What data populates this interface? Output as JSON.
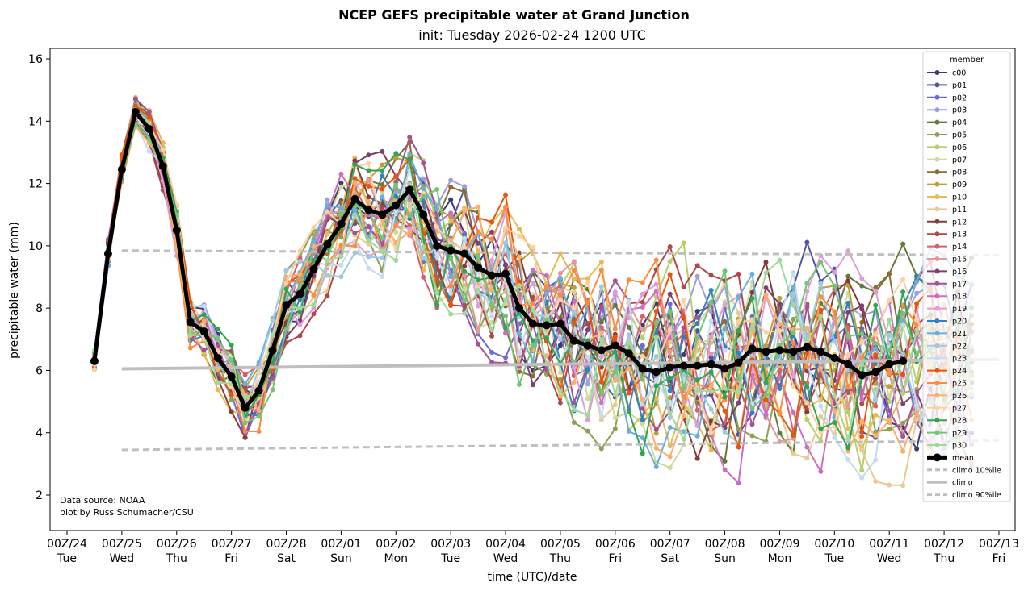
{
  "chart_data": {
    "type": "line",
    "title": "NCEP GEFS precipitable water at Grand Junction",
    "subtitle": "init: Tuesday 2026-02-24 1200 UTC",
    "xlabel": "time (UTC)/date",
    "ylabel": "precipitable water (mm)",
    "ylim": [
      0.9,
      16.4
    ],
    "yticks": [
      "2",
      "4",
      "6",
      "8",
      "10",
      "12",
      "14",
      "16"
    ],
    "xticks": [
      {
        "top": "00Z/24",
        "bottom": "Tue"
      },
      {
        "top": "00Z/25",
        "bottom": "Wed"
      },
      {
        "top": "00Z/26",
        "bottom": "Thu"
      },
      {
        "top": "00Z/27",
        "bottom": "Fri"
      },
      {
        "top": "00Z/28",
        "bottom": "Sat"
      },
      {
        "top": "00Z/01",
        "bottom": "Sun"
      },
      {
        "top": "00Z/02",
        "bottom": "Mon"
      },
      {
        "top": "00Z/03",
        "bottom": "Tue"
      },
      {
        "top": "00Z/04",
        "bottom": "Wed"
      },
      {
        "top": "00Z/05",
        "bottom": "Thu"
      },
      {
        "top": "00Z/06",
        "bottom": "Fri"
      },
      {
        "top": "00Z/07",
        "bottom": "Sat"
      },
      {
        "top": "00Z/08",
        "bottom": "Sun"
      },
      {
        "top": "00Z/09",
        "bottom": "Mon"
      },
      {
        "top": "00Z/10",
        "bottom": "Tue"
      },
      {
        "top": "00Z/11",
        "bottom": "Wed"
      },
      {
        "top": "00Z/12",
        "bottom": "Thu"
      },
      {
        "top": "00Z/13",
        "bottom": "Fri"
      }
    ],
    "x_units": "days since 00Z/24",
    "x_start": 0.5,
    "x_step": 0.25,
    "grid": false,
    "legend_title": "member",
    "legend_position": "top-right",
    "annotation": [
      "Data source: NOAA",
      "plot by Russ Schumacher/CSU"
    ],
    "mean": {
      "name": "mean",
      "color": "#000000",
      "values": [
        6.3,
        9.75,
        12.45,
        14.3,
        13.75,
        12.55,
        10.5,
        7.55,
        7.25,
        6.4,
        5.8,
        4.8,
        5.35,
        6.65,
        8.1,
        8.45,
        9.25,
        10.05,
        10.7,
        11.5,
        11.15,
        11.0,
        11.3,
        11.8,
        11.0,
        10.0,
        9.85,
        9.75,
        9.3,
        9.05,
        9.1,
        8.0,
        7.5,
        7.45,
        7.5,
        6.95,
        6.8,
        6.65,
        6.8,
        6.55,
        6.05,
        5.95,
        6.1,
        6.15,
        6.15,
        6.2,
        6.05,
        6.25,
        6.7,
        6.6,
        6.65,
        6.6,
        6.75,
        6.6,
        6.4,
        6.2,
        5.85,
        5.95,
        6.2,
        6.3
      ]
    },
    "climo": {
      "x_range": [
        1.0,
        17.0
      ],
      "p10": {
        "name": "climo 10%ile",
        "values": [
          3.45,
          3.75
        ]
      },
      "median": {
        "name": "climo",
        "values": [
          6.05,
          6.35
        ]
      },
      "p90": {
        "name": "climo 90%ile",
        "values": [
          9.85,
          9.7
        ]
      },
      "color": "#bfbfbf"
    },
    "members": [
      {
        "name": "c00",
        "color": "#393b79"
      },
      {
        "name": "p01",
        "color": "#5254a3"
      },
      {
        "name": "p02",
        "color": "#6b6ecf"
      },
      {
        "name": "p03",
        "color": "#9c9ede"
      },
      {
        "name": "p04",
        "color": "#637939"
      },
      {
        "name": "p05",
        "color": "#8ca252"
      },
      {
        "name": "p06",
        "color": "#b5cf6b"
      },
      {
        "name": "p07",
        "color": "#cedb9c"
      },
      {
        "name": "p08",
        "color": "#8c6d31"
      },
      {
        "name": "p09",
        "color": "#bd9e39"
      },
      {
        "name": "p10",
        "color": "#e7ba52"
      },
      {
        "name": "p11",
        "color": "#e7cb94"
      },
      {
        "name": "p12",
        "color": "#843c39"
      },
      {
        "name": "p13",
        "color": "#ad494a"
      },
      {
        "name": "p14",
        "color": "#d6616b"
      },
      {
        "name": "p15",
        "color": "#e7969c"
      },
      {
        "name": "p16",
        "color": "#7b4173"
      },
      {
        "name": "p17",
        "color": "#a55194"
      },
      {
        "name": "p18",
        "color": "#ce6dbd"
      },
      {
        "name": "p19",
        "color": "#de9ed6"
      },
      {
        "name": "p20",
        "color": "#3182bd"
      },
      {
        "name": "p21",
        "color": "#6baed6"
      },
      {
        "name": "p22",
        "color": "#9ecae1"
      },
      {
        "name": "p23",
        "color": "#c6dbef"
      },
      {
        "name": "p24",
        "color": "#e6550d"
      },
      {
        "name": "p25",
        "color": "#fd8d3c"
      },
      {
        "name": "p26",
        "color": "#fdae6b"
      },
      {
        "name": "p27",
        "color": "#fdd0a2"
      },
      {
        "name": "p28",
        "color": "#31a354"
      },
      {
        "name": "p29",
        "color": "#74c476"
      },
      {
        "name": "p30",
        "color": "#a1d99b"
      }
    ]
  }
}
